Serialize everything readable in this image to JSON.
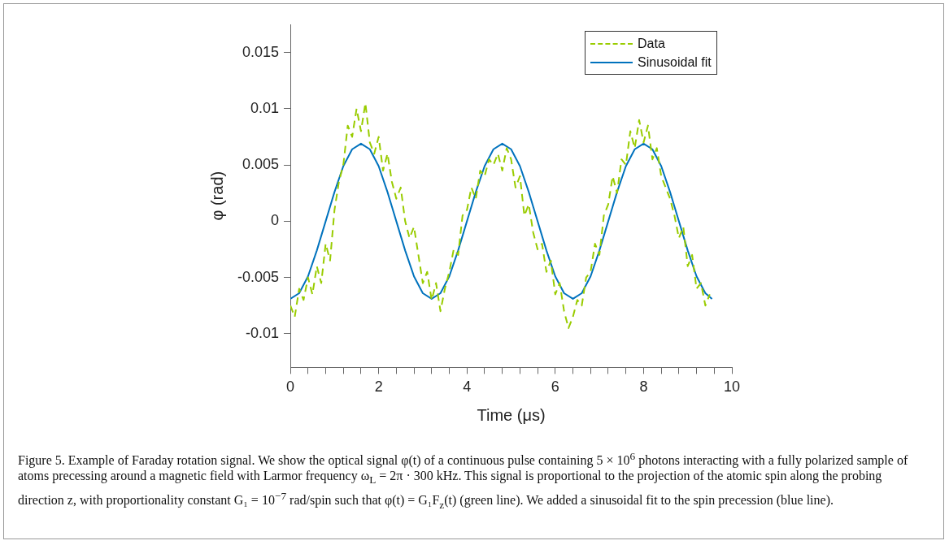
{
  "chart_data": {
    "type": "line",
    "xlabel": "Time (μs)",
    "ylabel": "φ (rad)",
    "xlim": [
      0,
      10
    ],
    "ylim": [
      -0.013,
      0.0175
    ],
    "xticks": [
      0,
      {
        "value": 0.4,
        "label": null
      },
      {
        "value": 0.8,
        "label": null
      },
      {
        "value": 1.2,
        "label": null
      },
      {
        "value": 1.6,
        "label": null
      },
      2,
      {
        "value": 2.4,
        "label": null
      },
      {
        "value": 2.8,
        "label": null
      },
      {
        "value": 3.2,
        "label": null
      },
      {
        "value": 3.6,
        "label": null
      },
      4,
      {
        "value": 4.4,
        "label": null
      },
      {
        "value": 4.8,
        "label": null
      },
      {
        "value": 5.2,
        "label": null
      },
      {
        "value": 5.6,
        "label": null
      },
      6,
      {
        "value": 6.4,
        "label": null
      },
      {
        "value": 6.8,
        "label": null
      },
      {
        "value": 7.2,
        "label": null
      },
      {
        "value": 7.6,
        "label": null
      },
      8,
      {
        "value": 8.4,
        "label": null
      },
      {
        "value": 8.8,
        "label": null
      },
      {
        "value": 9.2,
        "label": null
      },
      {
        "value": 9.6,
        "label": null
      },
      10
    ],
    "yticks": [
      -0.01,
      -0.005,
      0,
      0.005,
      0.01,
      0.015
    ],
    "grid": false,
    "legend": "top right",
    "marker": "none",
    "series": [
      {
        "name": "Data",
        "color": "#99cc00",
        "line_style": "dashed",
        "x": [
          0,
          0.1,
          0.2,
          0.3,
          0.4,
          0.5,
          0.6,
          0.7,
          0.8,
          0.9,
          1,
          1.1,
          1.2,
          1.3,
          1.4,
          1.5,
          1.6,
          1.7,
          1.8,
          1.9,
          2,
          2.1,
          2.2,
          2.3,
          2.4,
          2.5,
          2.6,
          2.7,
          2.8,
          2.9,
          3,
          3.1,
          3.2,
          3.3,
          3.4,
          3.5,
          3.6,
          3.7,
          3.8,
          3.9,
          4,
          4.1,
          4.2,
          4.3,
          4.4,
          4.5,
          4.6,
          4.7,
          4.8,
          4.9,
          5,
          5.1,
          5.2,
          5.3,
          5.4,
          5.5,
          5.6,
          5.7,
          5.8,
          5.9,
          6,
          6.1,
          6.2,
          6.3,
          6.4,
          6.5,
          6.6,
          6.7,
          6.8,
          6.9,
          7,
          7.1,
          7.2,
          7.3,
          7.4,
          7.5,
          7.6,
          7.7,
          7.8,
          7.9,
          8,
          8.1,
          8.2,
          8.3,
          8.4,
          8.5,
          8.6,
          8.7,
          8.8,
          8.9,
          9,
          9.1,
          9.2,
          9.3,
          9.4,
          9.5
        ],
        "values": [
          -0.0075,
          -0.0085,
          -0.006,
          -0.007,
          -0.005,
          -0.0065,
          -0.004,
          -0.0055,
          -0.002,
          -0.0035,
          0.001,
          0.0035,
          0.005,
          0.0085,
          0.0075,
          0.01,
          0.008,
          0.0105,
          0.007,
          0.006,
          0.0075,
          0.0045,
          0.006,
          0.0035,
          0.002,
          0.003,
          0,
          -0.0015,
          -0.0005,
          -0.003,
          -0.0055,
          -0.0045,
          -0.007,
          -0.0055,
          -0.008,
          -0.006,
          -0.0045,
          -0.0025,
          -0.003,
          0.0005,
          0.001,
          0.003,
          0.002,
          0.0045,
          0.004,
          0.0055,
          0.005,
          0.006,
          0.0045,
          0.0065,
          0.0055,
          0.003,
          0.004,
          0.0005,
          0.0015,
          -0.001,
          -0.0025,
          -0.002,
          -0.0045,
          -0.0035,
          -0.0065,
          -0.0055,
          -0.008,
          -0.0095,
          -0.0085,
          -0.007,
          -0.0075,
          -0.005,
          -0.0045,
          -0.002,
          -0.003,
          0.0005,
          0.0015,
          0.004,
          0.0025,
          0.0055,
          0.005,
          0.008,
          0.0065,
          0.009,
          0.007,
          0.0085,
          0.0055,
          0.0065,
          0.004,
          0.003,
          0.002,
          0.0005,
          -0.0015,
          -0.0005,
          -0.004,
          -0.003,
          -0.006,
          -0.0055,
          -0.0075,
          -0.0065
        ]
      },
      {
        "name": "Sinusoidal fit",
        "color": "#0072bd",
        "line_style": "solid",
        "x": [
          0,
          0.2,
          0.4,
          0.6,
          0.8,
          1,
          1.2,
          1.4,
          1.6,
          1.8,
          2,
          2.2,
          2.4,
          2.6,
          2.8,
          3,
          3.2,
          3.4,
          3.6,
          3.8,
          4,
          4.2,
          4.4,
          4.6,
          4.8,
          5,
          5.2,
          5.4,
          5.6,
          5.8,
          6,
          6.2,
          6.4,
          6.6,
          6.8,
          7,
          7.2,
          7.4,
          7.6,
          7.8,
          8,
          8.2,
          8.4,
          8.6,
          8.8,
          9,
          9.2,
          9.4,
          9.55
        ],
        "values": [
          -0.0069,
          -0.0064,
          -0.0049,
          -0.0026,
          0,
          0.0026,
          0.0049,
          0.0064,
          0.0069,
          0.0064,
          0.0049,
          0.0026,
          0,
          -0.0026,
          -0.0049,
          -0.0064,
          -0.0069,
          -0.0064,
          -0.0049,
          -0.0026,
          0,
          0.0026,
          0.0049,
          0.0064,
          0.0069,
          0.0064,
          0.0049,
          0.0026,
          0,
          -0.0026,
          -0.0049,
          -0.0064,
          -0.0069,
          -0.0064,
          -0.0049,
          -0.0026,
          0,
          0.0026,
          0.0049,
          0.0064,
          0.0069,
          0.0064,
          0.0049,
          0.0026,
          0,
          -0.0026,
          -0.0049,
          -0.0064,
          -0.0069
        ]
      }
    ],
    "annotations": [
      "Figure 5. Example of Faraday rotation signal. We show the optical signal φ(t) of a continuous pulse containing 5 × 10$^{6}$ photons interacting with a fully polarized sample of atoms precessing around a magnetic field with Larmor frequency ω$_{L}$ = 2π · 300 kHz. This signal is proportional to the projection of the atomic spin along the probing direction z, with proportionality constant G₁ = 10$^{−7}$ rad/spin such that φ(t) = G₁F$_{z}$(t) (green line). We added a sinusoidal fit to the spin precession (blue line)."
    ]
  }
}
